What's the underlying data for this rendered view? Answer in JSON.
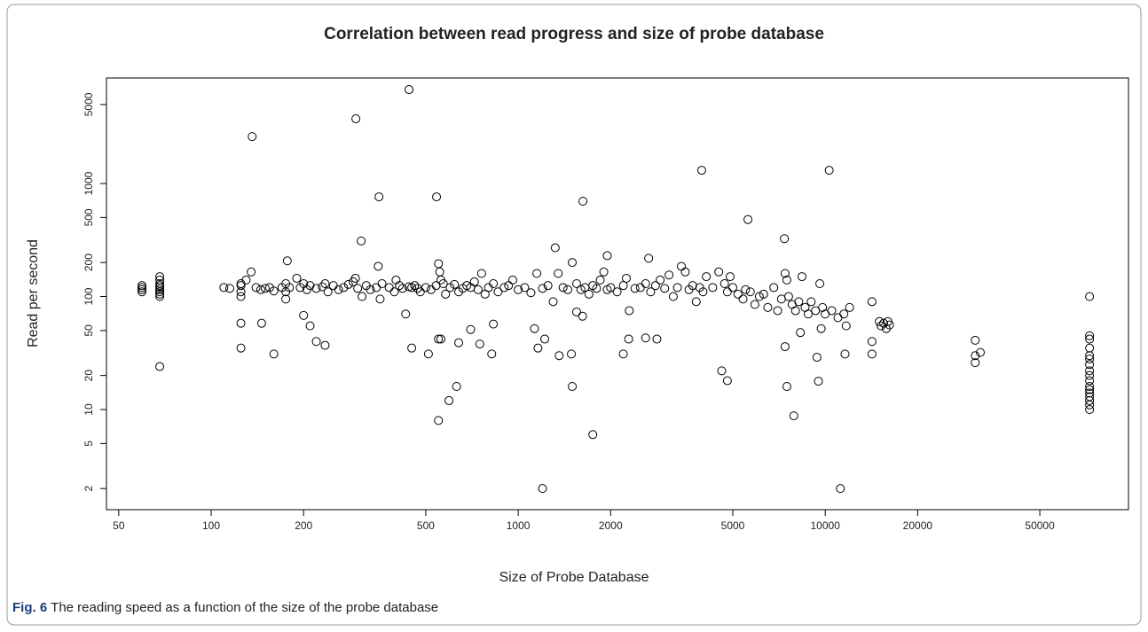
{
  "chart_data": {
    "type": "scatter",
    "title": "Correlation between read progress and size of probe database",
    "x_label": "Size of Probe Database",
    "y_label": "Read per second",
    "x_log": true,
    "y_log": true,
    "color": "#000000",
    "xlim": [
      45.6,
      97200
    ],
    "ylim": [
      1.3,
      8580
    ],
    "xticks": [
      50,
      100,
      200,
      500,
      1000,
      2000,
      5000,
      10000,
      20000,
      50000
    ],
    "yticks": [
      2,
      5,
      10,
      20,
      50,
      100,
      200,
      500,
      1000,
      5000
    ],
    "x": [
      59.5,
      59.5,
      59.5,
      59.5,
      68,
      68,
      68,
      68,
      68,
      68,
      68,
      68,
      68,
      68,
      110,
      115,
      125,
      125,
      125,
      125,
      130,
      135,
      140,
      145,
      150,
      155,
      160,
      170,
      175,
      175,
      175,
      180,
      190,
      195,
      200,
      205,
      210,
      220,
      230,
      235,
      240,
      250,
      260,
      270,
      280,
      290,
      295,
      300,
      310,
      320,
      330,
      345,
      350,
      355,
      360,
      380,
      395,
      400,
      410,
      420,
      430,
      440,
      450,
      460,
      470,
      480,
      500,
      520,
      540,
      550,
      555,
      560,
      570,
      580,
      600,
      620,
      640,
      660,
      680,
      700,
      720,
      740,
      760,
      780,
      800,
      830,
      860,
      900,
      930,
      960,
      1000,
      1050,
      1100,
      1150,
      1200,
      1250,
      1300,
      1320,
      1350,
      1400,
      1450,
      1500,
      1550,
      1600,
      1650,
      1700,
      1750,
      1800,
      1850,
      1900,
      1950,
      2000,
      2100,
      2200,
      2250,
      2300,
      2400,
      2500,
      2600,
      2700,
      2800,
      2900,
      3000,
      3100,
      3200,
      3300,
      3400,
      3500,
      3600,
      3700,
      3800,
      3900,
      4000,
      4100,
      4300,
      4500,
      4700,
      4800,
      4900,
      5000,
      5200,
      5400,
      5500,
      5700,
      5900,
      6100,
      6300,
      6500,
      6800,
      7000,
      7200,
      7400,
      7500,
      7600,
      7800,
      8000,
      8200,
      8400,
      8600,
      8800,
      9000,
      9300,
      9600,
      9800,
      10000,
      10500,
      11000,
      11500,
      12000,
      15000,
      15200,
      15500,
      15800,
      16000,
      16200,
      136,
      296,
      441,
      352,
      542,
      1625,
      3960,
      10300,
      5600,
      7360,
      308,
      177,
      1950,
      2660,
      450,
      125,
      160,
      200,
      210,
      220,
      235,
      146,
      125,
      510,
      550,
      560,
      640,
      700,
      750,
      820,
      830,
      1130,
      1220,
      1160,
      1200,
      1750,
      1500,
      1360,
      1490,
      1550,
      1620,
      630,
      595,
      550,
      2200,
      2290,
      2600,
      2830,
      4600,
      4800,
      7500,
      7900,
      9500,
      9400,
      11200,
      11600,
      7400,
      8300,
      9700,
      11700,
      14200,
      14200,
      14200,
      30800,
      30800,
      32000,
      30800,
      72600,
      72600,
      72600,
      72600,
      72600,
      72600,
      72600,
      72600,
      72600,
      72600,
      72600,
      72600,
      72600,
      72600,
      72600,
      72600,
      72600
    ],
    "values": [
      110,
      115,
      120,
      125,
      100,
      105,
      110,
      115,
      120,
      125,
      130,
      140,
      150,
      24,
      120,
      118,
      125,
      130,
      110,
      100,
      140,
      165,
      120,
      115,
      118,
      120,
      112,
      120,
      130,
      110,
      95,
      120,
      145,
      120,
      130,
      115,
      125,
      118,
      122,
      130,
      110,
      125,
      115,
      120,
      128,
      135,
      145,
      118,
      100,
      125,
      115,
      120,
      185,
      95,
      130,
      120,
      110,
      140,
      125,
      118,
      70,
      122,
      120,
      125,
      118,
      110,
      120,
      115,
      125,
      195,
      165,
      140,
      130,
      105,
      120,
      128,
      110,
      118,
      125,
      120,
      135,
      115,
      160,
      105,
      120,
      130,
      110,
      120,
      125,
      140,
      115,
      120,
      108,
      160,
      118,
      125,
      90,
      270,
      160,
      120,
      115,
      200,
      130,
      115,
      120,
      105,
      125,
      118,
      140,
      165,
      115,
      120,
      110,
      125,
      145,
      75,
      118,
      120,
      130,
      110,
      125,
      140,
      118,
      155,
      100,
      120,
      185,
      165,
      115,
      125,
      90,
      120,
      110,
      150,
      120,
      165,
      130,
      110,
      150,
      120,
      105,
      95,
      115,
      110,
      85,
      100,
      105,
      80,
      120,
      75,
      95,
      160,
      140,
      100,
      85,
      75,
      90,
      150,
      80,
      70,
      90,
      75,
      130,
      80,
      70,
      75,
      65,
      70,
      80,
      60,
      55,
      58,
      52,
      60,
      56,
      2600,
      3740,
      6780,
      762,
      762,
      697,
      1310,
      1310,
      480,
      325,
      310,
      207,
      230,
      218,
      35,
      35,
      31,
      68,
      55,
      40,
      37,
      58,
      58,
      31,
      42,
      42,
      39,
      51,
      38,
      31,
      57,
      52,
      42,
      35,
      2,
      6,
      16,
      30,
      31,
      73,
      67,
      16,
      12,
      8,
      31,
      42,
      43,
      42,
      22,
      18,
      16,
      8.8,
      17.8,
      29,
      2,
      31,
      36,
      48,
      52,
      55,
      31,
      40,
      90,
      41,
      30,
      32,
      26,
      100,
      45,
      42,
      35,
      30,
      28,
      25,
      22,
      20,
      18,
      16,
      15,
      14,
      13,
      12,
      11,
      10
    ]
  },
  "caption": {
    "label": "Fig. 6",
    "text": "The reading speed as a function of the size of the probe database"
  }
}
